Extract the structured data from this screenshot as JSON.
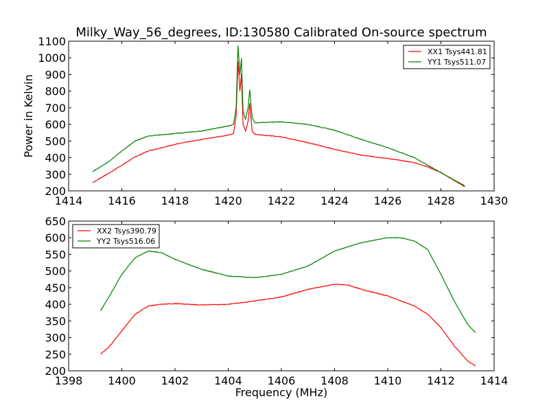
{
  "chart_data": [
    {
      "type": "line",
      "title": "Milky_Way_56_degrees, ID:130580 Calibrated On-source spectrum",
      "xlabel": "",
      "ylabel": "Power in Kelvin",
      "xlim": [
        1414,
        1430
      ],
      "ylim": [
        200,
        1100
      ],
      "xticks": [
        1414,
        1416,
        1418,
        1420,
        1422,
        1424,
        1426,
        1428,
        1430
      ],
      "yticks": [
        200,
        300,
        400,
        500,
        600,
        700,
        800,
        900,
        1000,
        1100
      ],
      "legend_position": "top-right",
      "series": [
        {
          "name": "XX1 Tsys441.81",
          "color": "#ff0000",
          "x": [
            1414.9,
            1415.5,
            1416,
            1416.5,
            1417,
            1418,
            1419,
            1420,
            1420.2,
            1420.3,
            1420.37,
            1420.44,
            1420.5,
            1420.56,
            1420.65,
            1420.75,
            1420.81,
            1420.9,
            1421,
            1422,
            1423,
            1424,
            1425,
            1426,
            1427,
            1427.5,
            1428,
            1428.9
          ],
          "y": [
            250,
            305,
            355,
            405,
            440,
            480,
            510,
            535,
            545,
            650,
            980,
            800,
            905,
            600,
            560,
            620,
            728,
            560,
            540,
            525,
            490,
            450,
            415,
            395,
            370,
            345,
            310,
            225
          ]
        },
        {
          "name": "YY1 Tsys511.07",
          "color": "#008000",
          "x": [
            1414.9,
            1415.5,
            1416,
            1416.5,
            1417,
            1418,
            1419,
            1420,
            1420.2,
            1420.3,
            1420.37,
            1420.44,
            1420.5,
            1420.56,
            1420.65,
            1420.75,
            1420.81,
            1420.9,
            1421,
            1422,
            1423,
            1424,
            1425,
            1426,
            1427,
            1427.5,
            1428,
            1428.9
          ],
          "y": [
            315,
            375,
            440,
            500,
            530,
            545,
            560,
            590,
            600,
            700,
            1075,
            900,
            1000,
            680,
            630,
            700,
            810,
            640,
            610,
            615,
            600,
            565,
            510,
            460,
            400,
            355,
            310,
            230
          ]
        }
      ]
    },
    {
      "type": "line",
      "title": "",
      "xlabel": "Frequency (MHz)",
      "ylabel": "",
      "xlim": [
        1398,
        1414
      ],
      "ylim": [
        200,
        650
      ],
      "xticks": [
        1398,
        1400,
        1402,
        1404,
        1406,
        1408,
        1410,
        1412,
        1414
      ],
      "yticks": [
        200,
        250,
        300,
        350,
        400,
        450,
        500,
        550,
        600,
        650
      ],
      "legend_position": "top-left",
      "series": [
        {
          "name": "XX2 Tsys390.79",
          "color": "#ff0000",
          "x": [
            1399.2,
            1399.5,
            1400,
            1400.5,
            1401,
            1401.5,
            1402,
            1403,
            1404,
            1405,
            1406,
            1407,
            1408,
            1408.5,
            1409,
            1410,
            1411,
            1411.5,
            1412,
            1412.5,
            1413,
            1413.3
          ],
          "y": [
            250,
            270,
            320,
            370,
            395,
            400,
            402,
            398,
            400,
            410,
            422,
            445,
            460,
            458,
            445,
            425,
            395,
            370,
            330,
            275,
            230,
            215
          ]
        },
        {
          "name": "YY2 Tsys516.06",
          "color": "#008000",
          "x": [
            1399.2,
            1399.5,
            1400,
            1400.5,
            1401,
            1401.5,
            1402,
            1403,
            1404,
            1405,
            1406,
            1407,
            1408,
            1409,
            1410,
            1410.5,
            1411,
            1411.5,
            1412,
            1412.5,
            1413,
            1413.3
          ],
          "y": [
            380,
            420,
            490,
            540,
            560,
            555,
            535,
            505,
            485,
            480,
            490,
            515,
            560,
            585,
            600,
            600,
            590,
            565,
            490,
            410,
            340,
            315
          ]
        }
      ]
    }
  ]
}
